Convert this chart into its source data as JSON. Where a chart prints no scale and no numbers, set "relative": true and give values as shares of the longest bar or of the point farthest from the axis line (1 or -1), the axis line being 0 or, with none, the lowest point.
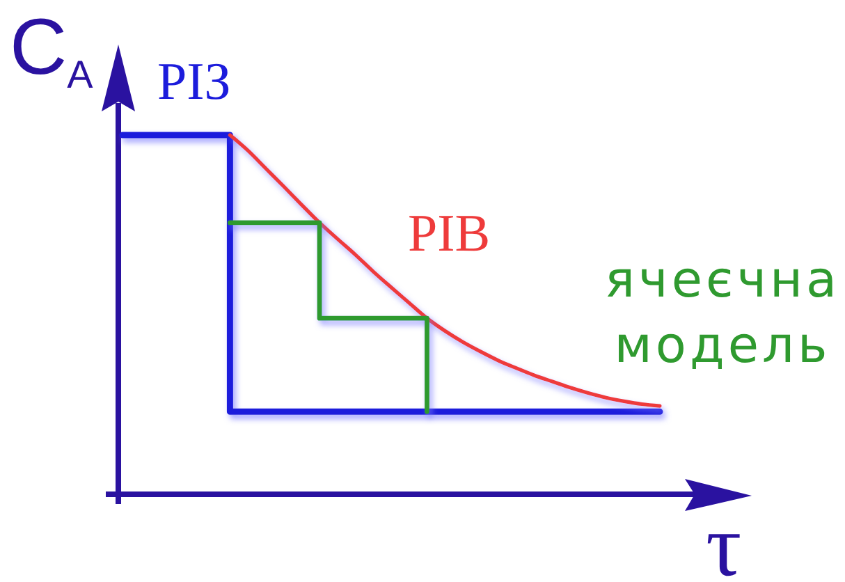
{
  "chart_data": {
    "type": "line",
    "relative": true,
    "xlabel": "τ",
    "ylabel": "C$_{A}$",
    "categories": [
      null,
      null,
      null,
      null,
      null,
      null,
      null,
      null,
      null,
      null,
      null,
      null,
      null,
      null,
      null,
      null,
      null,
      null,
      null,
      null,
      null,
      null,
      null,
      null,
      null,
      null,
      null,
      null,
      null,
      null,
      null
    ],
    "series": [
      {
        "name": "РІЗ",
        "type": "step",
        "color": "#1c1cdc",
        "values": [
          1,
          1,
          1,
          1,
          1,
          1,
          0.23,
          0.23,
          0.23,
          0.23,
          0.23,
          0.23,
          0.23,
          0.23,
          0.23,
          0.23,
          0.23,
          0.23,
          0.23,
          0.23,
          0.23,
          0.23,
          0.23,
          0.23,
          0.23,
          0.23,
          0.23,
          0.23,
          0.23,
          0.23,
          0.23
        ]
      },
      {
        "name": "РІВ",
        "type": "line",
        "color": "#ee3b3b",
        "values": [
          null,
          null,
          null,
          null,
          null,
          null,
          1,
          0.957,
          0.907,
          0.857,
          0.806,
          0.756,
          0.711,
          0.667,
          0.62,
          0.576,
          0.533,
          0.49,
          0.455,
          0.424,
          0.397,
          0.372,
          0.351,
          0.331,
          0.314,
          0.297,
          0.282,
          0.269,
          0.259,
          0.251,
          0.246
        ]
      },
      {
        "name": "ячеєчна модель",
        "type": "step",
        "color": "#2f9a2f",
        "values": [
          null,
          null,
          null,
          null,
          null,
          null,
          0.756,
          0.756,
          0.756,
          0.756,
          0.756,
          0.49,
          0.49,
          0.49,
          0.49,
          0.49,
          0.49,
          0.23,
          null,
          null,
          null,
          null,
          null,
          null,
          null,
          null,
          null,
          null,
          null,
          null,
          null
        ]
      }
    ]
  }
}
